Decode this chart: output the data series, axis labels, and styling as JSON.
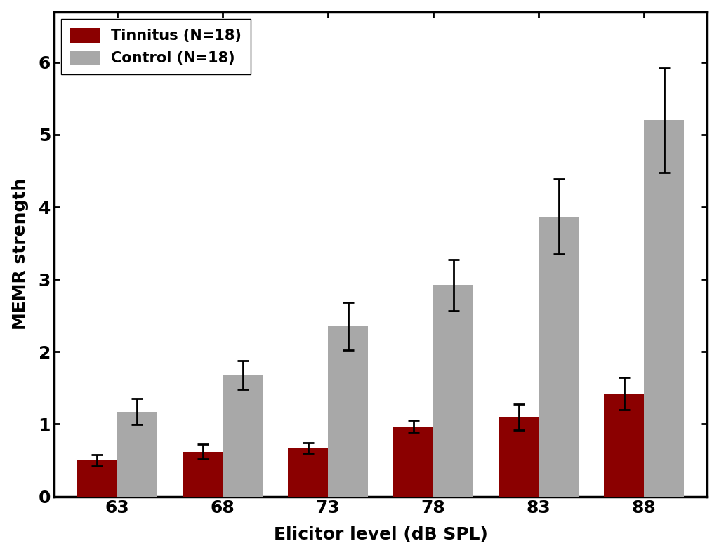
{
  "categories": [
    63,
    68,
    73,
    78,
    83,
    88
  ],
  "tinnitus_values": [
    0.5,
    0.62,
    0.67,
    0.97,
    1.1,
    1.42
  ],
  "control_values": [
    1.17,
    1.68,
    2.35,
    2.92,
    3.87,
    5.2
  ],
  "tinnitus_errors": [
    0.08,
    0.1,
    0.07,
    0.08,
    0.18,
    0.22
  ],
  "control_errors": [
    0.18,
    0.2,
    0.33,
    0.35,
    0.52,
    0.72
  ],
  "tinnitus_color": "#8B0000",
  "control_color": "#A8A8A8",
  "tinnitus_label": "Tinnitus (N=18)",
  "control_label": "Control (N=18)",
  "xlabel": "Elicitor level (dB SPL)",
  "ylabel": "MEMR strength",
  "ylim": [
    0,
    6.7
  ],
  "yticks": [
    0,
    1,
    2,
    3,
    4,
    5,
    6
  ],
  "background_color": "#ffffff",
  "bar_width": 0.38,
  "label_fontsize": 18,
  "tick_fontsize": 18,
  "legend_fontsize": 15,
  "error_capsize": 6,
  "error_linewidth": 2.0,
  "error_capthick": 2.0,
  "spine_linewidth": 2.5
}
